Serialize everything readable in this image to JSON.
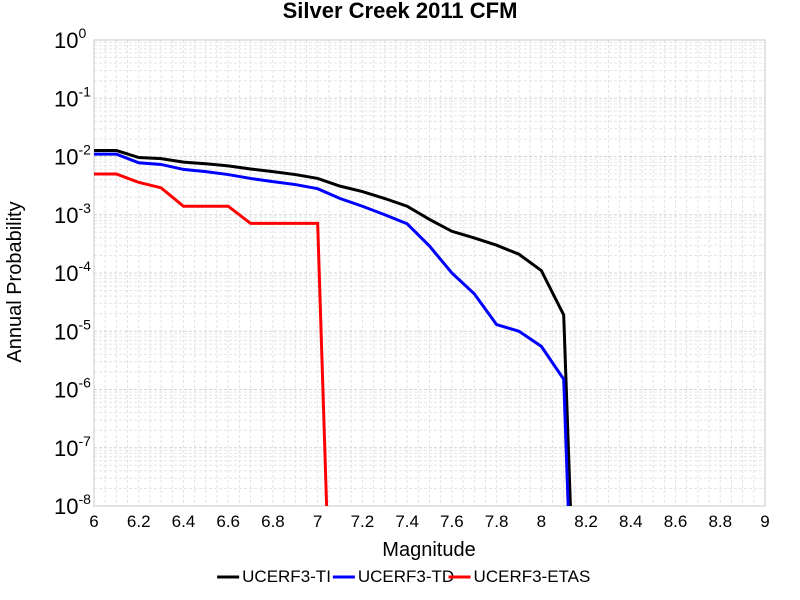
{
  "chart_data": {
    "type": "line",
    "title": "Silver Creek 2011 CFM",
    "xlabel": "Magnitude",
    "ylabel": "Annual Probability",
    "xlim": [
      6,
      9
    ],
    "ylim": [
      1e-08,
      1
    ],
    "yscale": "log",
    "grid": true,
    "legend_position": "bottom",
    "x_ticks": [
      "6",
      "6.2",
      "6.4",
      "6.6",
      "6.8",
      "7",
      "7.2",
      "7.4",
      "7.6",
      "7.8",
      "8",
      "8.2",
      "8.4",
      "8.6",
      "8.8",
      "9"
    ],
    "y_ticks": [
      {
        "base": "10",
        "exp": "0"
      },
      {
        "base": "10",
        "exp": "-1"
      },
      {
        "base": "10",
        "exp": "-2"
      },
      {
        "base": "10",
        "exp": "-3"
      },
      {
        "base": "10",
        "exp": "-4"
      },
      {
        "base": "10",
        "exp": "-5"
      },
      {
        "base": "10",
        "exp": "-6"
      },
      {
        "base": "10",
        "exp": "-7"
      },
      {
        "base": "10",
        "exp": "-8"
      }
    ],
    "series": [
      {
        "name": "UCERF3-TI",
        "color": "#000000",
        "x": [
          6.0,
          6.1,
          6.2,
          6.3,
          6.4,
          6.5,
          6.6,
          6.7,
          6.8,
          6.9,
          7.0,
          7.1,
          7.2,
          7.3,
          7.4,
          7.5,
          7.6,
          7.7,
          7.8,
          7.9,
          8.0,
          8.1,
          8.13
        ],
        "y": [
          0.0127,
          0.0127,
          0.0096,
          0.0092,
          0.008,
          0.0075,
          0.0069,
          0.0061,
          0.0055,
          0.0049,
          0.0042,
          0.0031,
          0.0025,
          0.0019,
          0.0014,
          0.00083,
          0.00052,
          0.0004,
          0.0003,
          0.00021,
          0.00011,
          1.9e-05,
          1e-08
        ]
      },
      {
        "name": "UCERF3-TD",
        "color": "#0000ff",
        "x": [
          6.0,
          6.1,
          6.2,
          6.3,
          6.4,
          6.5,
          6.6,
          6.7,
          6.8,
          6.9,
          7.0,
          7.1,
          7.2,
          7.3,
          7.4,
          7.5,
          7.6,
          7.7,
          7.8,
          7.9,
          8.0,
          8.1,
          8.12
        ],
        "y": [
          0.011,
          0.011,
          0.0078,
          0.0073,
          0.006,
          0.0055,
          0.0049,
          0.0042,
          0.0037,
          0.0033,
          0.0028,
          0.0019,
          0.0014,
          0.001,
          0.0007,
          0.00029,
          0.0001,
          4.4e-05,
          1.3e-05,
          1e-05,
          5.5e-06,
          1.5e-06,
          1e-08
        ]
      },
      {
        "name": "UCERF3-ETAS",
        "color": "#ff0000",
        "x": [
          6.0,
          6.1,
          6.2,
          6.3,
          6.4,
          6.5,
          6.6,
          6.7,
          6.8,
          6.9,
          7.0,
          7.04
        ],
        "y": [
          0.005,
          0.005,
          0.0036,
          0.0029,
          0.0014,
          0.0014,
          0.0014,
          0.00071,
          0.00071,
          0.00071,
          0.00071,
          1e-08
        ]
      }
    ]
  }
}
